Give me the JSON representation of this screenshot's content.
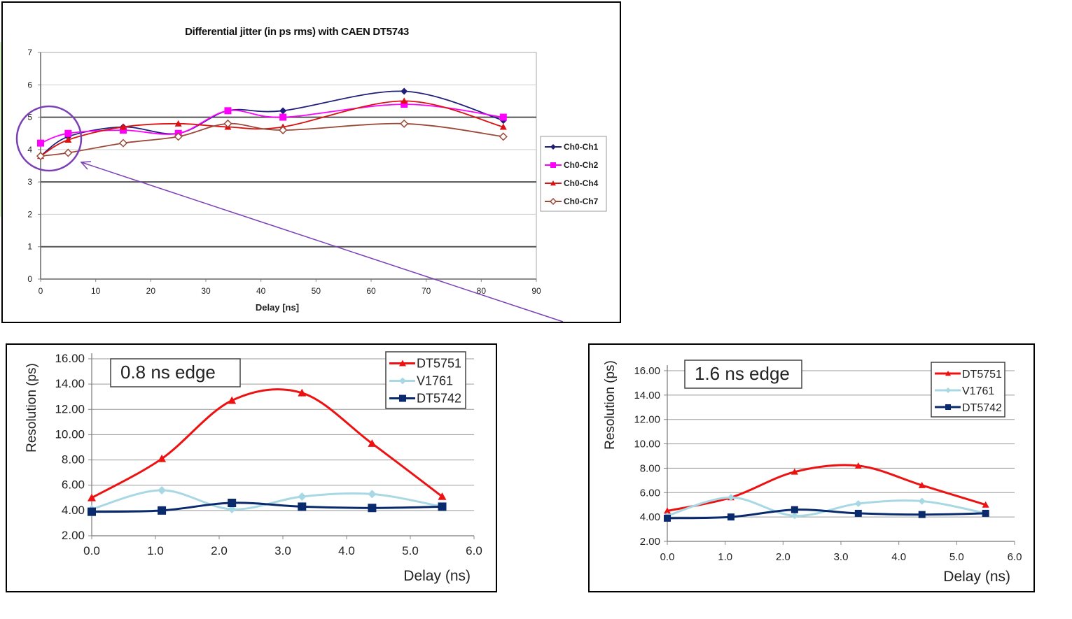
{
  "chart_data": [
    {
      "type": "line",
      "title": "Differential jitter (in ps rms)  with CAEN DT5743",
      "xlabel": "Delay [ns]",
      "ylabel": "",
      "xlim": [
        0,
        90
      ],
      "ylim": [
        0,
        7
      ],
      "x_ticks": [
        "0",
        "10",
        "20",
        "30",
        "40",
        "50",
        "60",
        "70",
        "80",
        "90"
      ],
      "y_ticks": [
        "0",
        "1",
        "2",
        "3",
        "4",
        "5",
        "6",
        "7"
      ],
      "legend_position": "right",
      "grid": true,
      "series": [
        {
          "name": "Ch0-Ch1",
          "color": "#1f1f7a",
          "marker": "diamond",
          "x": [
            0,
            5,
            15,
            25,
            34,
            44,
            66,
            84
          ],
          "y": [
            3.8,
            4.4,
            4.7,
            4.5,
            5.2,
            5.2,
            5.8,
            4.9
          ]
        },
        {
          "name": "Ch0-Ch2",
          "color": "#ff00ff",
          "marker": "square",
          "x": [
            0,
            5,
            15,
            25,
            34,
            44,
            66,
            84
          ],
          "y": [
            4.2,
            4.5,
            4.6,
            4.5,
            5.2,
            5.0,
            5.4,
            5.0
          ]
        },
        {
          "name": "Ch0-Ch4",
          "color": "#dd1111",
          "marker": "triangle",
          "x": [
            0,
            5,
            15,
            25,
            34,
            44,
            66,
            84
          ],
          "y": [
            3.8,
            4.3,
            4.7,
            4.8,
            4.7,
            4.7,
            5.5,
            4.7
          ]
        },
        {
          "name": "Ch0-Ch7",
          "color": "#9b4a3a",
          "marker": "diamond-open",
          "x": [
            0,
            5,
            15,
            25,
            34,
            44,
            66,
            84
          ],
          "y": [
            3.8,
            3.9,
            4.2,
            4.4,
            4.8,
            4.6,
            4.8,
            4.4
          ]
        }
      ],
      "annotation_color": "#7b3fb5"
    },
    {
      "type": "line",
      "annotation": "0.8 ns edge",
      "xlabel": "Delay (ns)",
      "ylabel": "Resolution (ps)",
      "xlim": [
        0,
        6
      ],
      "ylim": [
        2,
        16
      ],
      "x_ticks": [
        "0.0",
        "1.0",
        "2.0",
        "3.0",
        "4.0",
        "5.0",
        "6.0"
      ],
      "y_ticks": [
        "2.00",
        "4.00",
        "6.00",
        "8.00",
        "10.00",
        "12.00",
        "14.00",
        "16.00"
      ],
      "legend_position": "top-right",
      "grid": true,
      "series": [
        {
          "name": "DT5751",
          "color": "#ee1111",
          "marker": "triangle",
          "x": [
            0,
            1.1,
            2.2,
            3.3,
            4.4,
            5.5
          ],
          "y": [
            5.0,
            8.1,
            12.7,
            13.3,
            9.3,
            5.1
          ]
        },
        {
          "name": "V1761",
          "color": "#a8d8e4",
          "marker": "diamond",
          "x": [
            0,
            1.1,
            2.2,
            3.3,
            4.4,
            5.5
          ],
          "y": [
            4.1,
            5.6,
            4.1,
            5.1,
            5.3,
            4.3
          ]
        },
        {
          "name": "DT5742",
          "color": "#0a2a6e",
          "marker": "square",
          "x": [
            0,
            1.1,
            2.2,
            3.3,
            4.4,
            5.5
          ],
          "y": [
            3.9,
            4.0,
            4.6,
            4.3,
            4.2,
            4.3
          ]
        }
      ]
    },
    {
      "type": "line",
      "annotation": "1.6 ns edge",
      "xlabel": "Delay (ns)",
      "ylabel": "Resolution (ps)",
      "xlim": [
        0,
        6
      ],
      "ylim": [
        2,
        16
      ],
      "x_ticks": [
        "0.0",
        "1.0",
        "2.0",
        "3.0",
        "4.0",
        "5.0",
        "6.0"
      ],
      "y_ticks": [
        "2.00",
        "4.00",
        "6.00",
        "8.00",
        "10.00",
        "12.00",
        "14.00",
        "16.00"
      ],
      "legend_position": "top-right",
      "grid": true,
      "series": [
        {
          "name": "DT5751",
          "color": "#ee1111",
          "marker": "triangle",
          "x": [
            0,
            1.1,
            2.2,
            3.3,
            4.4,
            5.5
          ],
          "y": [
            4.5,
            5.6,
            7.7,
            8.2,
            6.6,
            5.0
          ]
        },
        {
          "name": "V1761",
          "color": "#a8d8e4",
          "marker": "diamond",
          "x": [
            0,
            1.1,
            2.2,
            3.3,
            4.4,
            5.5
          ],
          "y": [
            4.1,
            5.6,
            4.1,
            5.1,
            5.3,
            4.3
          ]
        },
        {
          "name": "DT5742",
          "color": "#0a2a6e",
          "marker": "square",
          "x": [
            0,
            1.1,
            2.2,
            3.3,
            4.4,
            5.5
          ],
          "y": [
            3.9,
            4.0,
            4.6,
            4.3,
            4.2,
            4.3
          ]
        }
      ]
    }
  ]
}
